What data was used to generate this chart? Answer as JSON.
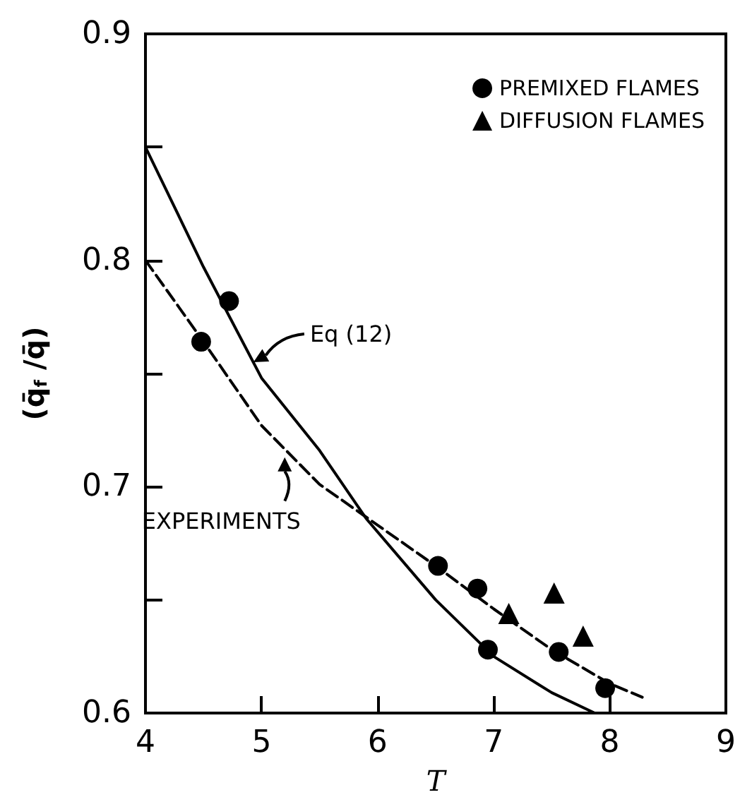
{
  "chart_data": {
    "type": "line",
    "xlabel": "T",
    "ylabel": "(q̄$_{f}$ /q̄)",
    "xlim": [
      4,
      9
    ],
    "xticks": [
      4,
      5,
      6,
      7,
      8,
      9
    ],
    "ylim": [
      0.6,
      0.9
    ],
    "yticks": [
      0.6,
      {
        "value": 0.65,
        "label": null
      },
      0.7,
      {
        "value": 0.75,
        "label": null
      },
      0.8,
      {
        "value": 0.85,
        "label": null
      },
      0.9
    ],
    "grid": false,
    "legend": "top right",
    "series": [
      {
        "type": "line",
        "color": "#000000",
        "line_style": "solid",
        "marker": "none",
        "x": [
          4,
          4.5,
          5,
          5.5,
          5.9,
          6.5,
          7,
          7.5,
          7.87
        ],
        "values": [
          0.85,
          0.797,
          0.748,
          0.716,
          0.686,
          0.65,
          0.625,
          0.609,
          0.6
        ]
      },
      {
        "type": "line",
        "color": "#000000",
        "line_style": "dashed",
        "marker": "none",
        "x": [
          4,
          4.5,
          5,
          5.5,
          6,
          6.5,
          7,
          7.5,
          8,
          8.28
        ],
        "values": [
          0.8,
          0.764,
          0.727,
          0.701,
          0.683,
          0.665,
          0.646,
          0.628,
          0.613,
          0.607
        ]
      },
      {
        "type": "scatter",
        "name": "PREMIXED FLAMES",
        "color": "#000000",
        "marker": "circle",
        "x": [
          4.48,
          4.72,
          6.52,
          6.86,
          6.95,
          7.56,
          7.96
        ],
        "values": [
          0.764,
          0.782,
          0.665,
          0.655,
          0.628,
          0.627,
          0.611
        ]
      },
      {
        "type": "scatter",
        "name": "DIFFUSION FLAMES",
        "color": "#000000",
        "marker": "triangle",
        "x": [
          7.13,
          7.52,
          7.77
        ],
        "values": [
          0.644,
          0.653,
          0.634
        ]
      }
    ],
    "annotations": [
      {
        "text": "Eq (12)",
        "x": 4.93,
        "y": 0.755
      },
      {
        "text": "EXPERIMENTS",
        "x": 5.2,
        "y": 0.713
      }
    ]
  }
}
